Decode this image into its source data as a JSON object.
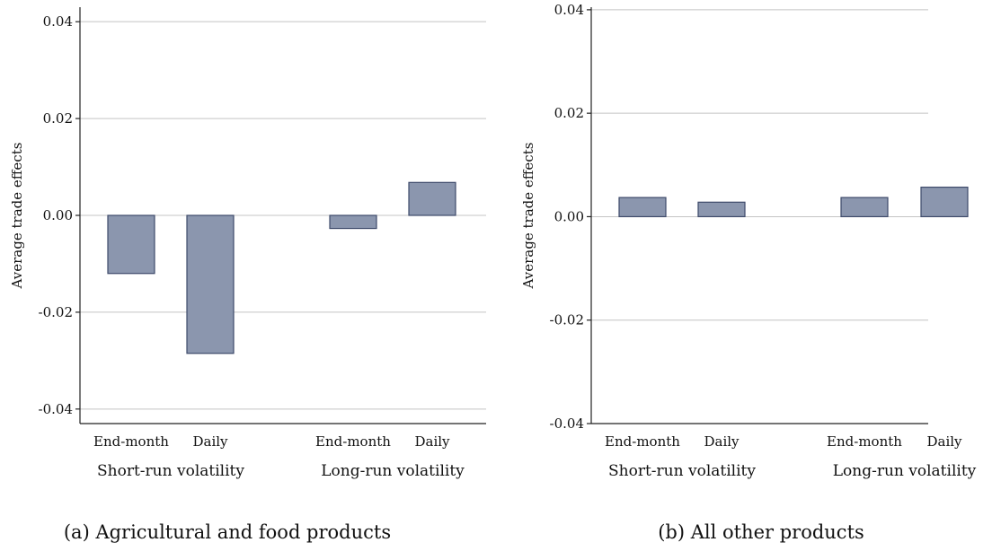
{
  "colors": {
    "bar_fill": "#8b96ae",
    "bar_stroke": "#3e4a6a",
    "grid": "#c4c4c4",
    "axis": "#222222"
  },
  "chart_data": [
    {
      "type": "bar",
      "caption": "(a) Agricultural and food products",
      "ylabel": "Average trade effects",
      "ylim": [
        -0.043,
        0.043
      ],
      "yticks": [
        -0.04,
        -0.02,
        0.0,
        0.02,
        0.04
      ],
      "ytick_labels": [
        "-0.04",
        "-0.02",
        "0.00",
        "0.02",
        "0.04"
      ],
      "grid": true,
      "categories": [
        "End-month",
        "Daily",
        "End-month",
        "Daily"
      ],
      "groups": [
        {
          "label": "Short-run volatility",
          "categories": [
            "End-month",
            "Daily"
          ],
          "values": [
            -0.012,
            -0.0285
          ]
        },
        {
          "label": "Long-run volatility",
          "categories": [
            "End-month",
            "Daily"
          ],
          "values": [
            -0.0027,
            0.0068
          ]
        }
      ]
    },
    {
      "type": "bar",
      "caption": "(b) All other products",
      "ylabel": "Average trade effects",
      "ylim": [
        -0.04,
        0.0405
      ],
      "yticks": [
        -0.04,
        -0.02,
        0.0,
        0.02,
        0.04
      ],
      "ytick_labels": [
        "-0.04",
        "-0.02",
        "0.00",
        "0.02",
        "0.04"
      ],
      "grid": true,
      "categories": [
        "End-month",
        "Daily",
        "End-month",
        "Daily"
      ],
      "groups": [
        {
          "label": "Short-run volatility",
          "categories": [
            "End-month",
            "Daily"
          ],
          "values": [
            0.0037,
            0.0028
          ]
        },
        {
          "label": "Long-run volatility",
          "categories": [
            "End-month",
            "Daily"
          ],
          "values": [
            0.0037,
            0.0057
          ]
        }
      ]
    }
  ]
}
